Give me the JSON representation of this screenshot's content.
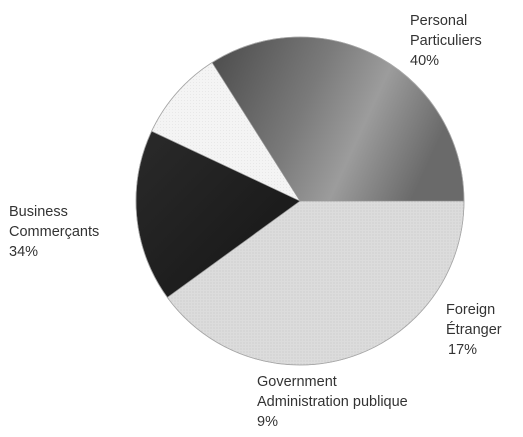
{
  "chart_data": {
    "type": "pie",
    "title": "",
    "slices": [
      {
        "label_en": "Personal",
        "label_fr": "Particuliers",
        "value": 40,
        "value_label": "40%",
        "color": "#d9d9d9"
      },
      {
        "label_en": "Foreign",
        "label_fr": "Étranger",
        "value": 17,
        "value_label": "17%",
        "color": "#1c1c1c"
      },
      {
        "label_en": "Government",
        "label_fr": "Administration publique",
        "value": 9,
        "value_label": "9%",
        "color": "#f2f2f2"
      },
      {
        "label_en": "Business",
        "label_fr": "Commerçants",
        "value": 34,
        "value_label": "34%",
        "color": "#6e6e6e"
      }
    ],
    "start_angle_deg": 0,
    "direction": "clockwise",
    "legend": "none"
  }
}
